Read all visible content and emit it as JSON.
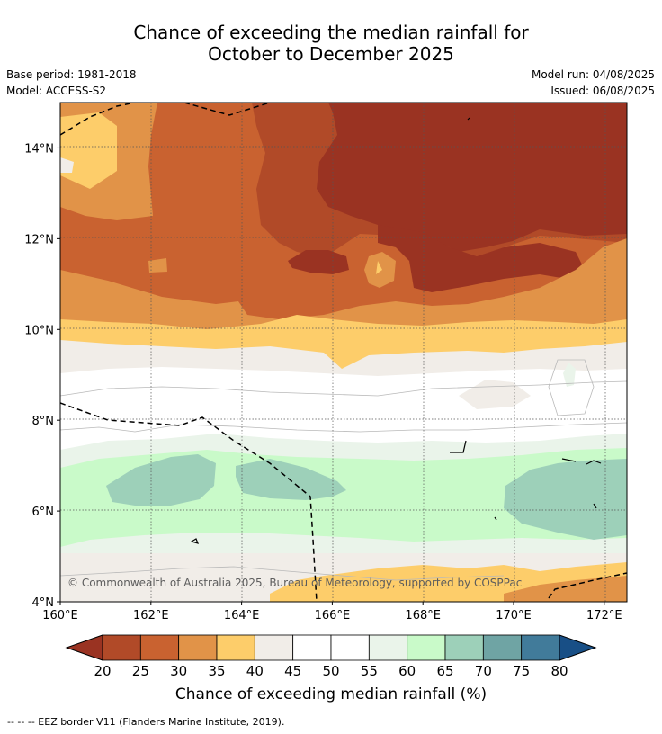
{
  "title_line1": "Chance of exceeding the median rainfall for",
  "title_line2": "October to December 2025",
  "base_period": "Base period: 1981-2018",
  "model": "Model: ACCESS-S2",
  "model_run": "Model run: 04/08/2025",
  "issued": "Issued: 06/08/2025",
  "copyright": "© Commonwealth of Australia 2025, Bureau of Meteorology, supported by COSPPac",
  "footer_note": "--  --  -- EEZ border V11 (Flanders Marine Institute, 2019).",
  "map": {
    "lon_range": [
      160,
      172.5
    ],
    "lat_range": [
      4,
      15
    ],
    "lon_ticks": [
      "160°E",
      "162°E",
      "164°E",
      "166°E",
      "168°E",
      "170°E",
      "172°E"
    ],
    "lat_ticks": [
      "4°N",
      "6°N",
      "8°N",
      "10°N",
      "12°N",
      "14°N"
    ]
  },
  "colorbar": {
    "label": "Chance of exceeding median rainfall (%)",
    "tick_labels": [
      "20",
      "25",
      "30",
      "35",
      "40",
      "45",
      "50",
      "55",
      "60",
      "65",
      "70",
      "75",
      "80"
    ],
    "colors": [
      "#9a3322",
      "#b14a28",
      "#c96230",
      "#e19348",
      "#fdcd6a",
      "#f1ede8",
      "#ffffff",
      "#ffffff",
      "#eaf4ea",
      "#c9fac9",
      "#9dd0b9",
      "#6fa4a4",
      "#417b9a",
      "#184f86"
    ]
  }
}
